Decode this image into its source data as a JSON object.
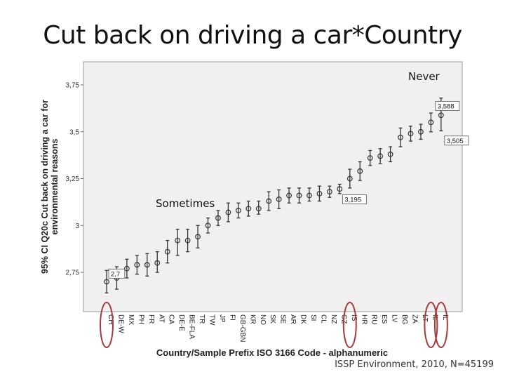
{
  "slide": {
    "title": "Cut back on driving a car*Country",
    "source_note": "ISSP Environment, 2010, N=45199"
  },
  "chart_data": {
    "type": "scatter",
    "error_bars": true,
    "ylabel_lines": [
      "95% CI Q20c Cut back on driving a car for",
      "environmental reasons"
    ],
    "xlabel": "Country/Sample Prefix ISO 3166 Code - alphanumeric",
    "ylim": [
      2.62,
      3.8
    ],
    "yticks": [
      {
        "value": 2.75,
        "label": "2,75"
      },
      {
        "value": 3.0,
        "label": "3"
      },
      {
        "value": 3.25,
        "label": "3,25"
      },
      {
        "value": 3.5,
        "label": "3,5"
      },
      {
        "value": 3.75,
        "label": "3,75"
      }
    ],
    "grid": false,
    "categories": [
      "CH",
      "DE-W",
      "MX",
      "PH",
      "FR",
      "AT",
      "CA",
      "DE-E",
      "BE-FLA",
      "TR",
      "TW",
      "JP",
      "FI",
      "GB-GBN",
      "KR",
      "NO",
      "SK",
      "SE",
      "AR",
      "DK",
      "SI",
      "CL",
      "NZ",
      "CZ",
      "IS",
      "HR",
      "RU",
      "ES",
      "LV",
      "BG",
      "ZA",
      "LT",
      "IL",
      "IL"
    ],
    "series": [
      {
        "mean": [
          2.7,
          2.72,
          2.77,
          2.79,
          2.79,
          2.8,
          2.86,
          2.92,
          2.92,
          2.94,
          3.0,
          3.04,
          3.07,
          3.08,
          3.09,
          3.09,
          3.13,
          3.14,
          3.16,
          3.16,
          3.16,
          3.17,
          3.18,
          3.195,
          3.25,
          3.29,
          3.36,
          3.37,
          3.38,
          3.47,
          3.49,
          3.5,
          3.55,
          3.588
        ],
        "lower": [
          2.64,
          2.66,
          2.72,
          2.74,
          2.73,
          2.75,
          2.8,
          2.84,
          2.86,
          2.88,
          2.96,
          3.0,
          3.02,
          3.04,
          3.05,
          3.06,
          3.08,
          3.09,
          3.12,
          3.12,
          3.13,
          3.13,
          3.15,
          3.17,
          3.2,
          3.24,
          3.32,
          3.33,
          3.34,
          3.42,
          3.45,
          3.46,
          3.5,
          3.505
        ],
        "upper": [
          2.76,
          2.78,
          2.82,
          2.84,
          2.85,
          2.86,
          2.92,
          2.98,
          2.98,
          3.0,
          3.04,
          3.08,
          3.12,
          3.12,
          3.13,
          3.13,
          3.18,
          3.19,
          3.2,
          3.2,
          3.2,
          3.21,
          3.21,
          3.22,
          3.3,
          3.34,
          3.4,
          3.41,
          3.42,
          3.52,
          3.53,
          3.54,
          3.6,
          3.68
        ]
      }
    ],
    "annotations": [
      {
        "text": "3,588",
        "x_index": 33,
        "y": 3.64
      },
      {
        "text": "3,505",
        "x_index": 33,
        "y": 3.455
      },
      {
        "text": "3,195",
        "x_index": 23,
        "y": 3.145
      },
      {
        "text": "2,7",
        "x_index": 0,
        "y": 2.745
      }
    ],
    "region_labels": [
      {
        "text": "Never"
      },
      {
        "text": "Sometimes"
      }
    ],
    "highlight_indices": [
      0,
      24,
      32,
      33
    ],
    "colors": {
      "plot_background": "#f0f0f0",
      "marker": "#333333",
      "highlight": "#a23b3b"
    }
  }
}
